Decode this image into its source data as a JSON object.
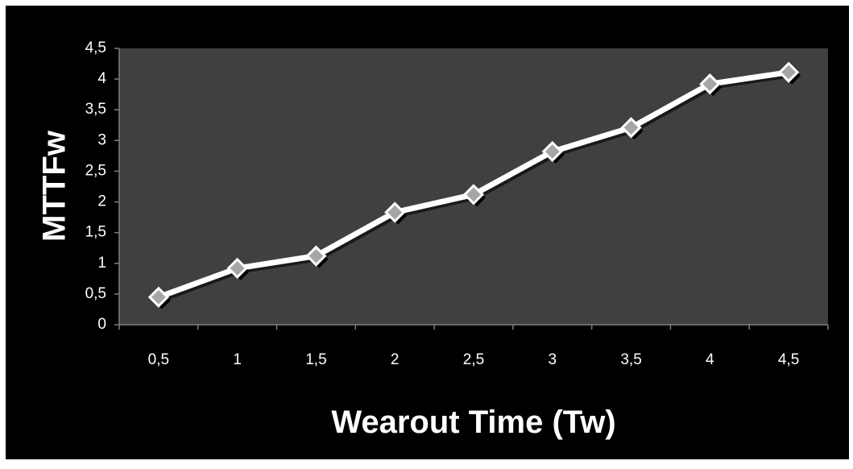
{
  "colors": {
    "page_border": "#ffffff",
    "chart_area": "#000000",
    "plot_area": "#404040",
    "text": "#ffffff",
    "axis": "#7f7f7f",
    "line": "#ffffff",
    "marker_fill": "#a6a6a6",
    "marker_shadow": "#000000"
  },
  "chart_data": {
    "type": "line",
    "title": "",
    "xlabel": "Wearout Time (Tw)",
    "ylabel": "MTTFw",
    "categories": [
      "0,5",
      "1",
      "1,5",
      "2",
      "2,5",
      "3",
      "3,5",
      "4",
      "4,5"
    ],
    "series": [
      {
        "values": [
          0.45,
          0.92,
          1.12,
          1.83,
          2.12,
          2.82,
          3.21,
          3.92,
          4.11
        ],
        "marker": "diamond"
      }
    ],
    "ylim": [
      0,
      4.5
    ],
    "y_ticks": [
      "0",
      "0,5",
      "1",
      "1,5",
      "2",
      "2,5",
      "3",
      "3,5",
      "4",
      "4,5"
    ],
    "grid": false,
    "legend": "none"
  }
}
